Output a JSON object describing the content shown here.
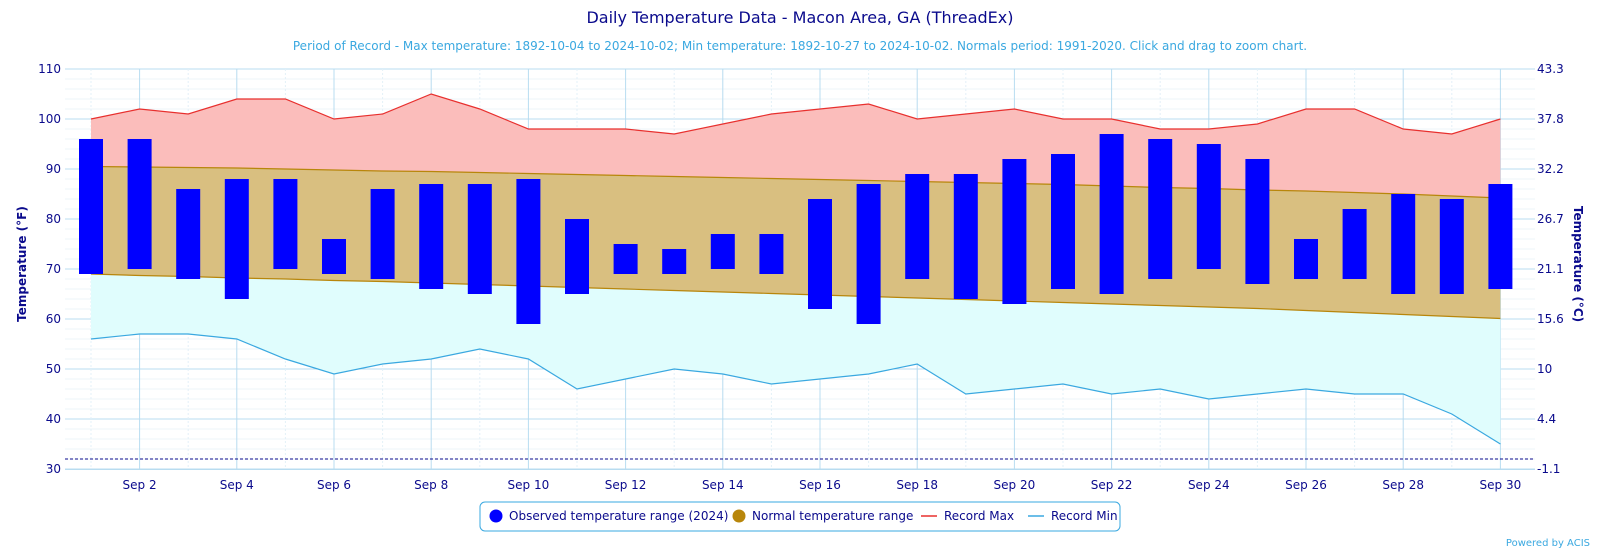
{
  "chart_data": {
    "type": "area",
    "title": "Daily Temperature Data - Macon Area, GA (ThreadEx)",
    "subtitle": "Period of Record - Max temperature: 1892-10-04 to 2024-10-02; Min temperature: 1892-10-27 to 2024-10-02. Normals period: 1991-2020. Click and drag to zoom chart.",
    "ylabel": "Temperature (°F)",
    "ylabel_right": "Temperature (°C)",
    "ylim": [
      30,
      110
    ],
    "y_ticks": [
      "30",
      "40",
      "50",
      "60",
      "70",
      "80",
      "90",
      "100",
      "110"
    ],
    "y_ticks_right": [
      "-1.1",
      "4.4",
      "10",
      "15.6",
      "21.1",
      "26.7",
      "32.2",
      "37.8",
      "43.3"
    ],
    "x_ticks": [
      "Sep 2",
      "Sep 4",
      "Sep 6",
      "Sep 8",
      "Sep 10",
      "Sep 12",
      "Sep 14",
      "Sep 16",
      "Sep 18",
      "Sep 20",
      "Sep 22",
      "Sep 24",
      "Sep 26",
      "Sep 28",
      "Sep 30"
    ],
    "days": [
      1,
      2,
      3,
      4,
      5,
      6,
      7,
      8,
      9,
      10,
      11,
      12,
      13,
      14,
      15,
      16,
      17,
      18,
      19,
      20,
      21,
      22,
      23,
      24,
      25,
      26,
      27,
      28,
      29,
      30
    ],
    "observed_high": [
      96,
      96,
      86,
      88,
      88,
      76,
      86,
      87,
      87,
      88,
      80,
      75,
      74,
      77,
      77,
      84,
      87,
      89,
      89,
      92,
      93,
      97,
      96,
      95,
      92,
      76,
      82,
      85,
      84,
      87
    ],
    "observed_low": [
      69,
      70,
      68,
      64,
      70,
      69,
      68,
      66,
      65,
      59,
      65,
      69,
      69,
      70,
      69,
      62,
      59,
      68,
      64,
      63,
      66,
      65,
      68,
      70,
      67,
      68,
      68,
      65,
      65,
      66
    ],
    "normal_high": [
      90.5,
      90.4,
      90.3,
      90.2,
      90.0,
      89.8,
      89.6,
      89.5,
      89.3,
      89.1,
      88.9,
      88.7,
      88.5,
      88.3,
      88.1,
      87.9,
      87.7,
      87.5,
      87.3,
      87.1,
      86.9,
      86.6,
      86.3,
      86.1,
      85.8,
      85.6,
      85.3,
      85.0,
      84.6,
      84.2
    ],
    "normal_low": [
      69.0,
      68.7,
      68.5,
      68.2,
      68.0,
      67.7,
      67.5,
      67.2,
      66.9,
      66.6,
      66.3,
      66.0,
      65.7,
      65.4,
      65.1,
      64.8,
      64.5,
      64.2,
      63.9,
      63.6,
      63.3,
      63.0,
      62.7,
      62.4,
      62.1,
      61.7,
      61.3,
      60.9,
      60.5,
      60.1
    ],
    "record_max": [
      100,
      102,
      101,
      104,
      104,
      100,
      101,
      105,
      102,
      98,
      98,
      98,
      97,
      99,
      101,
      102,
      103,
      100,
      101,
      102,
      100,
      100,
      98,
      98,
      99,
      102,
      102,
      98,
      97,
      100
    ],
    "record_min": [
      56,
      57,
      57,
      56,
      52,
      49,
      51,
      52,
      54,
      52,
      46,
      48,
      50,
      49,
      47,
      48,
      49,
      51,
      45,
      46,
      47,
      45,
      46,
      44,
      45,
      46,
      45,
      45,
      41,
      35
    ],
    "reference_line": 32,
    "legend": [
      "Observed temperature range (2024)",
      "Normal temperature range",
      "Record Max",
      "Record Min"
    ],
    "legend_placement": "bottom-center",
    "credit": "Powered by ACIS",
    "grid": true,
    "colors": {
      "observed": "#0000ff",
      "normal_fill": "#d9bf80",
      "normal_line": "#b8860b",
      "normal_marker": "#b8860b",
      "record_max_line": "#e8302e",
      "record_max_fill": "#fbbdbb",
      "record_min_line": "#3aa8e0",
      "record_min_fill": "#e0fdfd",
      "grid": "#b8dcf0",
      "reference": "#0a0a8c"
    }
  }
}
